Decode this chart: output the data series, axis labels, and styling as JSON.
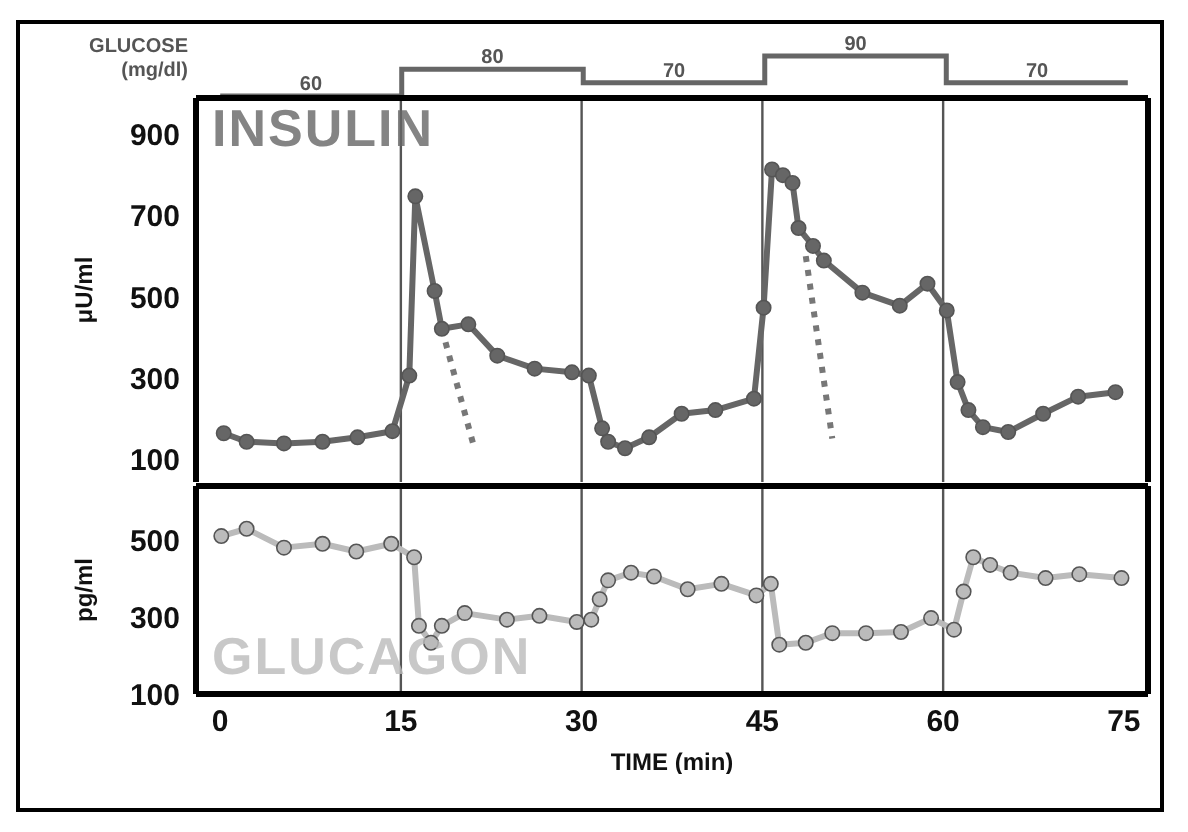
{
  "chart_data": [
    {
      "type": "other",
      "ylabel": "GLUCOSE (mg/dl)",
      "annotations": [
        "60",
        "80",
        "70",
        "90",
        "70"
      ],
      "color": "#666666"
    },
    {
      "type": "line",
      "ylabel": "μU/ml",
      "xlim": [
        -2,
        77
      ],
      "xticks": [
        0,
        15,
        30,
        45,
        60,
        75
      ],
      "ylim": [
        45,
        990
      ],
      "yticks": [
        100,
        300,
        500,
        700,
        900
      ],
      "tick_labels": "y",
      "ref_lines": [
        {
          "axis": "x",
          "value": 15,
          "color": "#555555"
        },
        {
          "axis": "x",
          "value": 30,
          "color": "#555555"
        },
        {
          "axis": "x",
          "value": 45,
          "color": "#555555"
        },
        {
          "axis": "x",
          "value": 60,
          "color": "#555555"
        }
      ],
      "series": [
        {
          "name": "INSULIN",
          "color": "#666666",
          "marker": "circle",
          "line_style": "solid",
          "x": [
            0.3,
            2.2,
            5.3,
            8.5,
            11.4,
            14.3,
            15.7,
            16.2,
            17.8,
            18.4,
            20.6,
            23,
            26.1,
            29.2,
            30.6,
            31.7,
            32.2,
            33.6,
            35.6,
            38.3,
            41.1,
            44.3,
            45.1,
            45.8,
            46.7,
            47.5,
            48,
            49.2,
            50.1,
            53.3,
            56.4,
            58.7,
            60.3,
            61.2,
            62.1,
            63.3,
            65.4,
            68.3,
            71.2,
            74.3
          ],
          "values": [
            165,
            144,
            140,
            144,
            155,
            170,
            307,
            748,
            515,
            422,
            433,
            356,
            324,
            315,
            307,
            177,
            144,
            128,
            155,
            213,
            222,
            250,
            474,
            814,
            800,
            781,
            670,
            626,
            590,
            511,
            479,
            533,
            467,
            291,
            222,
            180,
            168,
            213,
            255,
            266
          ]
        },
        {
          "color": "#777777",
          "marker": "none",
          "line_style": "dotted",
          "x": [
            18.4,
            21.1
          ],
          "values": [
            422,
            128
          ]
        },
        {
          "color": "#777777",
          "marker": "none",
          "line_style": "dotted",
          "x": [
            48.6,
            50.8
          ],
          "values": [
            601,
            152
          ]
        }
      ]
    },
    {
      "type": "line",
      "ylabel": "pg/ml",
      "xlabel": "TIME (min)",
      "xlim": [
        -2,
        77
      ],
      "xticks": [
        0,
        15,
        30,
        45,
        60,
        75
      ],
      "ylim": [
        100,
        640
      ],
      "yticks": [
        100,
        300,
        500
      ],
      "ref_lines": [
        {
          "axis": "x",
          "value": 15,
          "color": "#555555"
        },
        {
          "axis": "x",
          "value": 30,
          "color": "#555555"
        },
        {
          "axis": "x",
          "value": 45,
          "color": "#555555"
        },
        {
          "axis": "x",
          "value": 60,
          "color": "#555555"
        }
      ],
      "series": [
        {
          "name": "GLUCAGON",
          "color": "#bbbbbb",
          "marker": "circle",
          "line_style": "solid",
          "x": [
            0.1,
            2.2,
            5.3,
            8.5,
            11.3,
            14.2,
            16.1,
            16.5,
            17.5,
            18.4,
            20.3,
            23.8,
            26.5,
            29.6,
            30.8,
            31.5,
            32.2,
            34.1,
            36,
            38.8,
            41.6,
            44.5,
            45.7,
            46.4,
            48.6,
            50.8,
            53.6,
            56.5,
            59,
            60.9,
            61.7,
            62.5,
            63.9,
            65.6,
            68.5,
            71.3,
            74.8
          ],
          "values": [
            510,
            529,
            480,
            490,
            470,
            490,
            455,
            277,
            233,
            277,
            310,
            293,
            303,
            287,
            293,
            346,
            395,
            415,
            405,
            372,
            386,
            356,
            386,
            228,
            233,
            258,
            258,
            261,
            297,
            267,
            366,
            455,
            435,
            415,
            401,
            411,
            401
          ]
        }
      ]
    }
  ]
}
